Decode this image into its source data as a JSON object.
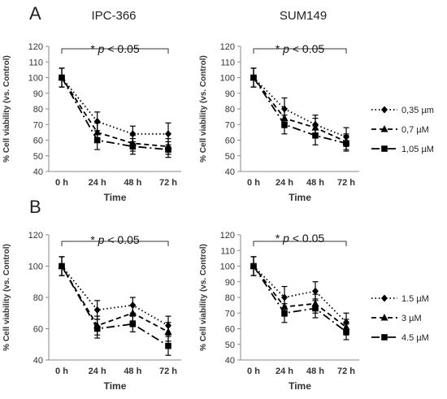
{
  "figure": {
    "panel_labels": [
      "A",
      "B"
    ],
    "column_titles": [
      "IPC-366",
      "SUM149"
    ],
    "significance_label": "* p < 0.05",
    "significance_star": "*",
    "significance_p": "p",
    "significance_rest": " < 0.05",
    "legend_A": [
      "0,35 µm",
      "0,7 µM",
      "1,05 µM"
    ],
    "legend_B": [
      "1.5 µM",
      "3 µM",
      "4.5 µM"
    ]
  },
  "chart_data": [
    {
      "id": "A-IPC366",
      "type": "line",
      "panel": "A",
      "title": "IPC-366",
      "xlabel": "Time",
      "ylabel": "% Cell viability (vs. Control)",
      "categories": [
        "0 h",
        "24 h",
        "48 h",
        "72 h"
      ],
      "ylim": [
        40,
        120
      ],
      "yticks": [
        40,
        50,
        60,
        70,
        80,
        90,
        100,
        110,
        120
      ],
      "grid": false,
      "annotation": "* p < 0.05",
      "series": [
        {
          "name": "0,35 µm",
          "style": "dotted",
          "marker": "diamond",
          "values": [
            100,
            72,
            64,
            64
          ],
          "errors": [
            6,
            6,
            5,
            7
          ]
        },
        {
          "name": "0,7 µM",
          "style": "dashed",
          "marker": "triangle",
          "values": [
            100,
            65,
            58,
            56
          ],
          "errors": [
            6,
            6,
            5,
            5
          ]
        },
        {
          "name": "1,05 µM",
          "style": "dashdot",
          "marker": "square",
          "values": [
            100,
            60,
            56,
            54
          ],
          "errors": [
            6,
            6,
            5,
            5
          ]
        }
      ]
    },
    {
      "id": "A-SUM149",
      "type": "line",
      "panel": "A",
      "title": "SUM149",
      "xlabel": "Time",
      "ylabel": "% Cell viability (vs. Control)",
      "categories": [
        "0 h",
        "24 h",
        "48 h",
        "72 h"
      ],
      "ylim": [
        40,
        120
      ],
      "yticks": [
        40,
        50,
        60,
        70,
        80,
        90,
        100,
        110,
        120
      ],
      "grid": false,
      "annotation": "* p < 0.05",
      "legend": "right",
      "series": [
        {
          "name": "0,35 µm",
          "style": "dotted",
          "marker": "diamond",
          "values": [
            100,
            80,
            70,
            62
          ],
          "errors": [
            6,
            7,
            6,
            6
          ]
        },
        {
          "name": "0,7 µM",
          "style": "dashed",
          "marker": "triangle",
          "values": [
            100,
            74,
            68,
            59
          ],
          "errors": [
            6,
            6,
            6,
            5
          ]
        },
        {
          "name": "1,05 µM",
          "style": "dashdot",
          "marker": "square",
          "values": [
            100,
            70,
            63,
            58
          ],
          "errors": [
            6,
            6,
            6,
            5
          ]
        }
      ]
    },
    {
      "id": "B-IPC366",
      "type": "line",
      "panel": "B",
      "title": "",
      "xlabel": "Time",
      "ylabel": "% Cell viability (vs. Control)",
      "categories": [
        "0 h",
        "24 h",
        "48 h",
        "72 h"
      ],
      "ylim": [
        40,
        120
      ],
      "yticks": [
        40,
        60,
        80,
        100,
        120
      ],
      "grid": false,
      "annotation": "* p < 0.05",
      "series": [
        {
          "name": "1.5 µM",
          "style": "dotted",
          "marker": "diamond",
          "values": [
            100,
            72,
            75,
            62
          ],
          "errors": [
            6,
            6,
            5,
            6
          ]
        },
        {
          "name": "3 µM",
          "style": "dashed",
          "marker": "triangle",
          "values": [
            100,
            62,
            70,
            58
          ],
          "errors": [
            6,
            6,
            5,
            6
          ]
        },
        {
          "name": "4.5 µM",
          "style": "dashdot",
          "marker": "square",
          "values": [
            100,
            60,
            63,
            49
          ],
          "errors": [
            6,
            6,
            5,
            6
          ]
        }
      ]
    },
    {
      "id": "B-SUM149",
      "type": "line",
      "panel": "B",
      "title": "",
      "xlabel": "Time",
      "ylabel": "% Cell viability (vs. Control)",
      "categories": [
        "0 h",
        "24 h",
        "48 h",
        "72 h"
      ],
      "ylim": [
        40,
        120
      ],
      "yticks": [
        40,
        50,
        60,
        70,
        80,
        90,
        100,
        110,
        120
      ],
      "grid": false,
      "annotation": "* p < 0.05",
      "legend": "right",
      "series": [
        {
          "name": "1.5 µM",
          "style": "dotted",
          "marker": "diamond",
          "values": [
            100,
            80,
            84,
            64
          ],
          "errors": [
            6,
            7,
            6,
            6
          ]
        },
        {
          "name": "3 µM",
          "style": "dashed",
          "marker": "triangle",
          "values": [
            100,
            74,
            76,
            61
          ],
          "errors": [
            6,
            6,
            6,
            5
          ]
        },
        {
          "name": "4.5 µM",
          "style": "dashdot",
          "marker": "square",
          "values": [
            100,
            70,
            73,
            58
          ],
          "errors": [
            6,
            6,
            6,
            5
          ]
        }
      ]
    }
  ]
}
